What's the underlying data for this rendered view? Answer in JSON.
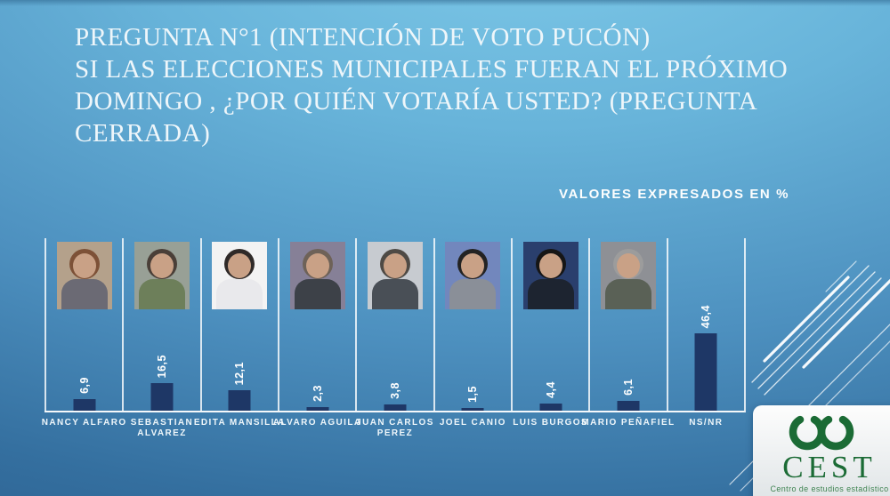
{
  "slide": {
    "title_lines": [
      "PREGUNTA N°1 (INTENCIÓN DE VOTO PUCÓN)",
      "SI LAS ELECCIONES MUNICIPALES FUERAN EL PRÓXIMO",
      "DOMINGO , ¿POR QUIÉN VOTARÍA USTED? (PREGUNTA",
      "CERRADA)"
    ],
    "note": "VALORES EXPRESADOS EN %"
  },
  "chart_data": {
    "type": "bar",
    "title": "PREGUNTA N°1 (INTENCIÓN DE VOTO PUCÓN)",
    "subtitle": "VALORES EXPRESADOS EN %",
    "categories": [
      "NANCY ALFARO",
      "SEBASTIAN ALVAREZ",
      "EDITA MANSILLA",
      "ALVARO AGUILA",
      "JUAN CARLOS PEREZ",
      "JOEL CANIO",
      "LUIS BURGOS",
      "MARIO PEÑAFIEL",
      "NS/NR"
    ],
    "values": [
      6.9,
      16.5,
      12.1,
      2.3,
      3.8,
      1.5,
      4.4,
      6.1,
      46.4
    ],
    "value_labels": [
      "6,9",
      "16,5",
      "12,1",
      "2,3",
      "3,8",
      "1,5",
      "4,4",
      "6,1",
      "46,4"
    ],
    "unit": "%",
    "ylim": [
      0,
      50
    ],
    "grid": false,
    "legend": "none",
    "value_label_rotation": -90,
    "bar_color": "#1e3766",
    "axis_color": "#ffffff"
  },
  "columns": [
    {
      "label_lines": [
        "NANCY ALFARO"
      ],
      "photo": {
        "bg": "#b4a18b",
        "cloth": "#6b6a74",
        "hair": "#7d5137"
      }
    },
    {
      "label_lines": [
        "SEBASTIAN",
        "ALVAREZ"
      ],
      "photo": {
        "bg": "#98a096",
        "cloth": "#6d7f5a",
        "hair": "#4a3f38"
      }
    },
    {
      "label_lines": [
        "EDITA MANSILLA"
      ],
      "photo": {
        "bg": "#f3f3f3",
        "cloth": "#e9e9ec",
        "hair": "#2f2a28"
      }
    },
    {
      "label_lines": [
        "ALVARO AGUILA"
      ],
      "photo": {
        "bg": "#868097",
        "cloth": "#3d4148",
        "hair": "#6e6258"
      }
    },
    {
      "label_lines": [
        "JUAN CARLOS",
        "PEREZ"
      ],
      "photo": {
        "bg": "#c7cbd0",
        "cloth": "#494f56",
        "hair": "#4e4a45"
      }
    },
    {
      "label_lines": [
        "JOEL CANIO"
      ],
      "photo": {
        "bg": "#7287bd",
        "cloth": "#8a8f98",
        "hair": "#232323"
      }
    },
    {
      "label_lines": [
        "LUIS BURGOS"
      ],
      "photo": {
        "bg": "#2a3f6d",
        "cloth": "#1d2430",
        "hair": "#161616"
      }
    },
    {
      "label_lines": [
        "MARIO PEÑAFIEL"
      ],
      "photo": {
        "bg": "#8e9095",
        "cloth": "#5a6156",
        "hair": "#9c9c9c"
      }
    },
    {
      "label_lines": [
        "NS/NR"
      ],
      "photo": null
    }
  ],
  "logo": {
    "name": "CEST",
    "tagline": "Centro de estudios estadístico",
    "green": "#1b6b35"
  }
}
